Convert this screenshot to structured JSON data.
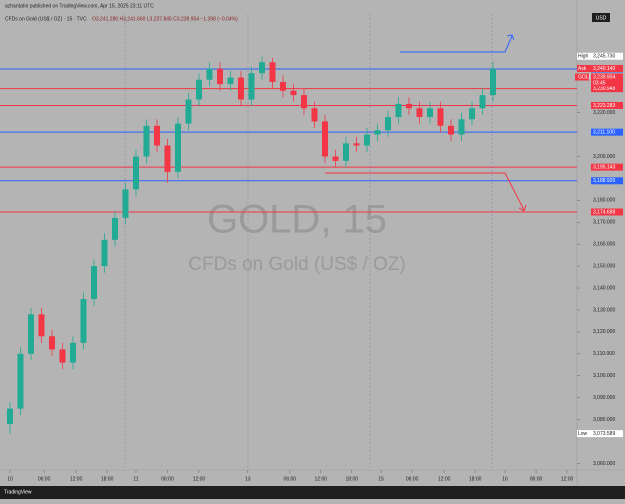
{
  "header": {
    "publisher": "azhantahir published on TradingView.com, Apr 15, 2025 23:11 UTC",
    "symbol": "CFDs on Gold (US$ / OZ) · 15 · TVC",
    "ohlc": "O3,241.280 H3,241.660 L3,237.845 C3,239.904 −1.398 (−0.04%)",
    "currency": "USD"
  },
  "footer": {
    "brand": "TradingView"
  },
  "chart_data": {
    "type": "candlestick",
    "watermark": "GOLD, 15",
    "watermark_sub": "CFDs on Gold (US$ / OZ)",
    "up_color": "#22ab94",
    "down_color": "#f23645",
    "background": "#b4b4b4",
    "x": [
      0,
      2,
      4,
      6,
      8,
      10,
      12,
      14,
      16,
      18,
      20,
      22,
      24,
      26,
      28,
      30,
      32,
      34,
      36,
      38,
      40,
      42,
      44,
      46,
      48,
      50,
      52,
      54,
      56,
      58,
      60,
      62,
      64,
      66,
      68,
      70,
      72,
      74,
      76,
      78,
      80,
      82,
      84,
      86,
      88,
      90,
      92
    ],
    "open": [
      3078,
      3085,
      3110,
      3128,
      3118,
      3112,
      3106,
      3115,
      3135,
      3150,
      3162,
      3172,
      3185,
      3200,
      3214,
      3205,
      3193,
      3215,
      3226,
      3235,
      3240,
      3233,
      3236,
      3226,
      3238,
      3243,
      3234,
      3230,
      3228,
      3222,
      3216,
      3200,
      3198,
      3206,
      3205,
      3210,
      3212,
      3218,
      3224,
      3222,
      3218,
      3222,
      3214,
      3210,
      3217,
      3222,
      3228
    ],
    "high": [
      3088,
      3113,
      3131,
      3131,
      3121,
      3115,
      3118,
      3138,
      3153,
      3165,
      3175,
      3188,
      3203,
      3217,
      3217,
      3208,
      3218,
      3229,
      3238,
      3243,
      3243,
      3239,
      3239,
      3241,
      3245.73,
      3245,
      3237,
      3233,
      3231,
      3225,
      3219,
      3203,
      3209,
      3209,
      3213,
      3215,
      3221,
      3227,
      3227,
      3225,
      3225,
      3225,
      3217,
      3220,
      3225,
      3231,
      3243
    ],
    "low": [
      3073.589,
      3082,
      3107,
      3115,
      3109,
      3103,
      3103,
      3112,
      3132,
      3147,
      3159,
      3169,
      3182,
      3197,
      3202,
      3188,
      3190,
      3212,
      3223,
      3232,
      3230,
      3230,
      3223,
      3223,
      3235,
      3231,
      3227,
      3225,
      3219,
      3213,
      3197,
      3195,
      3195,
      3202,
      3202,
      3207,
      3209,
      3215,
      3219,
      3215,
      3215,
      3211,
      3207,
      3207,
      3214,
      3219,
      3225
    ],
    "close": [
      3085,
      3110,
      3128,
      3118,
      3112,
      3106,
      3115,
      3135,
      3150,
      3162,
      3172,
      3185,
      3200,
      3214,
      3205,
      3193,
      3215,
      3226,
      3235,
      3240,
      3233,
      3236,
      3226,
      3238,
      3243,
      3234,
      3230,
      3228,
      3222,
      3216,
      3200,
      3198,
      3206,
      3205,
      3210,
      3212,
      3218,
      3224,
      3222,
      3218,
      3222,
      3214,
      3210,
      3217,
      3222,
      3228,
      3240
    ],
    "xlim": [
      -1.9,
      108
    ],
    "xticks": [
      {
        "value": 0,
        "label": "10"
      },
      {
        "value": 6.5,
        "label": "06:00"
      },
      {
        "value": 12.6,
        "label": "12:00"
      },
      {
        "value": 18.5,
        "label": "18:00"
      },
      {
        "value": 24,
        "label": "11"
      },
      {
        "value": 30,
        "label": "06:00"
      },
      {
        "value": 36,
        "label": "12:00"
      },
      {
        "value": 45.3,
        "label": "13"
      },
      {
        "value": 53.3,
        "label": "06:00"
      },
      {
        "value": 59.2,
        "label": "12:00"
      },
      {
        "value": 65.1,
        "label": "18:00"
      },
      {
        "value": 70.7,
        "label": "15"
      },
      {
        "value": 76.6,
        "label": "06:00"
      },
      {
        "value": 82.7,
        "label": "12:00"
      },
      {
        "value": 88.6,
        "label": "18:00"
      },
      {
        "value": 94.3,
        "label": "16"
      },
      {
        "value": 100.2,
        "label": "06:00"
      },
      {
        "value": 106.1,
        "label": "12:00"
      }
    ],
    "ylim": [
      3057,
      3265
    ],
    "yticks": [
      {
        "value": 3060,
        "label": "3,060.000"
      },
      {
        "value": 3080,
        "label": "3,080.000"
      },
      {
        "value": 3090,
        "label": "3,090.000"
      },
      {
        "value": 3100,
        "label": "3,100.000"
      },
      {
        "value": 3110,
        "label": "3,110.000"
      },
      {
        "value": 3120,
        "label": "3,120.000"
      },
      {
        "value": 3130,
        "label": "3,130.000"
      },
      {
        "value": 3140,
        "label": "3,140.000"
      },
      {
        "value": 3150,
        "label": "3,150.000"
      },
      {
        "value": 3160,
        "label": "3,160.000"
      },
      {
        "value": 3170,
        "label": "3,170.000"
      },
      {
        "value": 3180,
        "label": "3,180.000"
      },
      {
        "value": 3200,
        "label": "3,200.000"
      },
      {
        "value": 3220,
        "label": "3,220.000"
      }
    ],
    "levels": [
      {
        "value": 3239.92,
        "label": "3,239.920",
        "color": "#2962ff"
      },
      {
        "value": 3230.948,
        "label": "3,230.948",
        "color": "#f23645"
      },
      {
        "value": 3223.283,
        "label": "3,223.283",
        "color": "#f23645"
      },
      {
        "value": 3211.1,
        "label": "3,211.100",
        "color": "#2962ff"
      },
      {
        "value": 3195.143,
        "label": "3,195.143",
        "color": "#f23645"
      },
      {
        "value": 3188.92,
        "label": "3,188.920",
        "color": "#2962ff"
      },
      {
        "value": 3174.688,
        "label": "3,174.688",
        "color": "#f23645"
      }
    ],
    "badges": [
      {
        "name": "High",
        "value": 3245.73,
        "label": "3,245.730"
      },
      {
        "name": "Ask",
        "value": 3240.14,
        "label": "3,240.140"
      },
      {
        "name": "GOLD",
        "value": 3239.904,
        "label": "3,239.904",
        "countdown": "03:45"
      },
      {
        "name": "Low",
        "value": 3073.589,
        "label": "3,073.589"
      }
    ]
  }
}
